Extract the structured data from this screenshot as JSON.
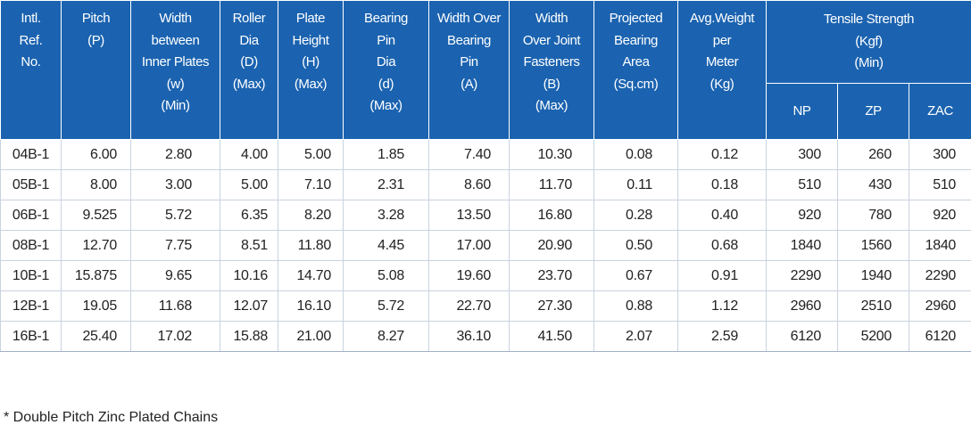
{
  "table": {
    "header": [
      [
        "Intl.",
        "Ref.",
        "No."
      ],
      [
        "Pitch",
        "(P)"
      ],
      [
        "Width",
        "between",
        "Inner Plates",
        "(w)",
        "(Min)"
      ],
      [
        "Roller",
        "Dia",
        "(D)",
        "(Max)"
      ],
      [
        "Plate",
        "Height",
        "(H)",
        "(Max)"
      ],
      [
        "Bearing",
        "Pin",
        "Dia",
        "(d)",
        "(Max)"
      ],
      [
        "Width Over",
        "Bearing",
        "Pin",
        "(A)"
      ],
      [
        "Width",
        "Over Joint",
        "Fasteners",
        "(B)",
        "(Max)"
      ],
      [
        "Projected",
        "Bearing",
        "Area",
        "(Sq.cm)"
      ],
      [
        "Avg.Weight",
        "per",
        "Meter",
        "(Kg)"
      ]
    ],
    "group": {
      "lines": [
        "Tensile Strength",
        "(Kgf)",
        "(Min)"
      ],
      "subheaders": [
        "NP",
        "ZP",
        "ZAC"
      ]
    },
    "rows": [
      [
        "04B-1",
        "6.00",
        "2.80",
        "4.00",
        "5.00",
        "1.85",
        "7.40",
        "10.30",
        "0.08",
        "0.12",
        "300",
        "260",
        "300"
      ],
      [
        "05B-1",
        "8.00",
        "3.00",
        "5.00",
        "7.10",
        "2.31",
        "8.60",
        "11.70",
        "0.11",
        "0.18",
        "510",
        "430",
        "510"
      ],
      [
        "06B-1",
        "9.525",
        "5.72",
        "6.35",
        "8.20",
        "3.28",
        "13.50",
        "16.80",
        "0.28",
        "0.40",
        "920",
        "780",
        "920"
      ],
      [
        "08B-1",
        "12.70",
        "7.75",
        "8.51",
        "11.80",
        "4.45",
        "17.00",
        "20.90",
        "0.50",
        "0.68",
        "1840",
        "1560",
        "1840"
      ],
      [
        "10B-1",
        "15.875",
        "9.65",
        "10.16",
        "14.70",
        "5.08",
        "19.60",
        "23.70",
        "0.67",
        "0.91",
        "2290",
        "1940",
        "2290"
      ],
      [
        "12B-1",
        "19.05",
        "11.68",
        "12.07",
        "16.10",
        "5.72",
        "22.70",
        "27.30",
        "0.88",
        "1.12",
        "2960",
        "2510",
        "2960"
      ],
      [
        "16B-1",
        "25.40",
        "17.02",
        "15.88",
        "21.00",
        "8.27",
        "36.10",
        "41.50",
        "2.07",
        "2.59",
        "6120",
        "5200",
        "6120"
      ]
    ]
  },
  "footnote": "* Double Pitch Zinc Plated Chains"
}
